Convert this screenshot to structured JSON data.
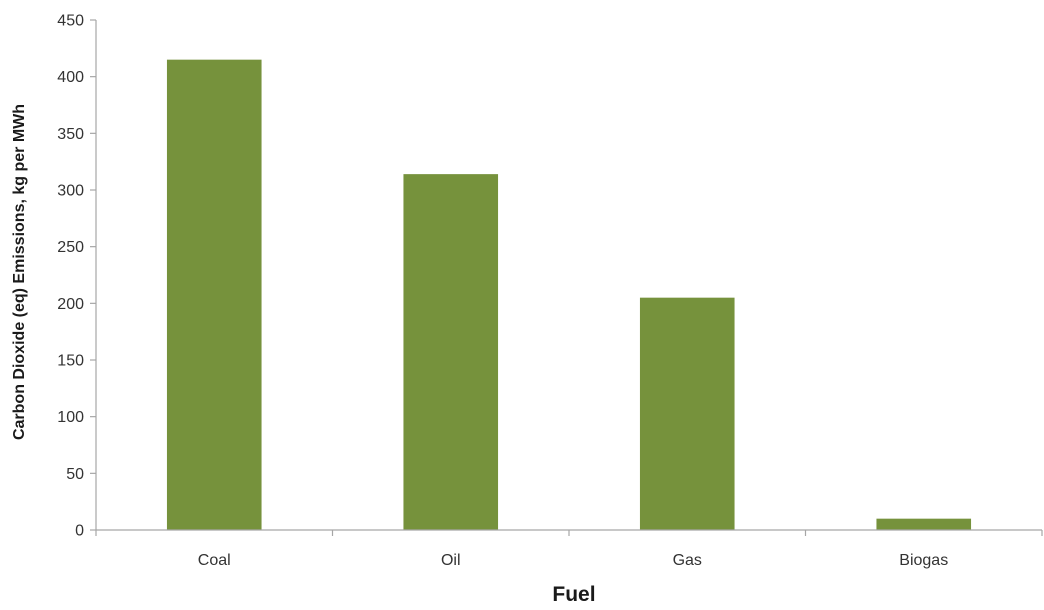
{
  "chart_data": {
    "type": "bar",
    "title": "",
    "xlabel": "Fuel",
    "ylabel": "Carbon Dioxide (eq) Emissions, kg per MWh",
    "categories": [
      "Coal",
      "Oil",
      "Gas",
      "Biogas"
    ],
    "values": [
      415,
      314,
      205,
      10
    ],
    "ylim": [
      0,
      450
    ],
    "yticks": [
      0,
      50,
      100,
      150,
      200,
      250,
      300,
      350,
      400,
      450
    ],
    "bar_color": "#76923C",
    "axis_color": "#A6A6A6",
    "grid": false,
    "legend": "none"
  }
}
